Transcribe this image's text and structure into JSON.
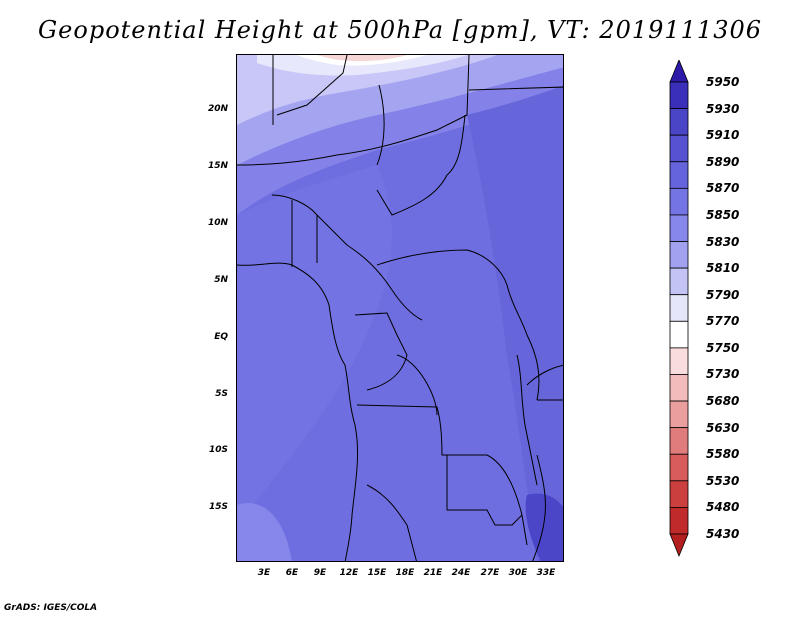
{
  "title": "Geopotential Height at 500hPa [gpm], VT: 2019111306",
  "footer": "GrADS: IGES/COLA",
  "map": {
    "latitude_labels": [
      "20N",
      "15N",
      "10N",
      "5N",
      "EQ",
      "5S",
      "10S",
      "15S"
    ],
    "longitude_labels": [
      "3E",
      "6E",
      "9E",
      "12E",
      "15E",
      "18E",
      "21E",
      "24E",
      "27E",
      "30E",
      "33E"
    ]
  },
  "colorbar": {
    "labels": [
      "5950",
      "5930",
      "5910",
      "5890",
      "5870",
      "5850",
      "5830",
      "5810",
      "5790",
      "5770",
      "5750",
      "5730",
      "5680",
      "5630",
      "5580",
      "5530",
      "5480",
      "5430"
    ],
    "colors": [
      "#2e1aa8",
      "#3a2fb8",
      "#4a44c6",
      "#5752d2",
      "#6564dc",
      "#7574e4",
      "#8786ea",
      "#a2a1f0",
      "#c4c3f6",
      "#e6e6fb",
      "#ffffff",
      "#f9dcdc",
      "#f2bcbc",
      "#eb9e9e",
      "#e07c7c",
      "#d85c5c",
      "#cc3f3f",
      "#c02a2a",
      "#b31e1e"
    ]
  }
}
